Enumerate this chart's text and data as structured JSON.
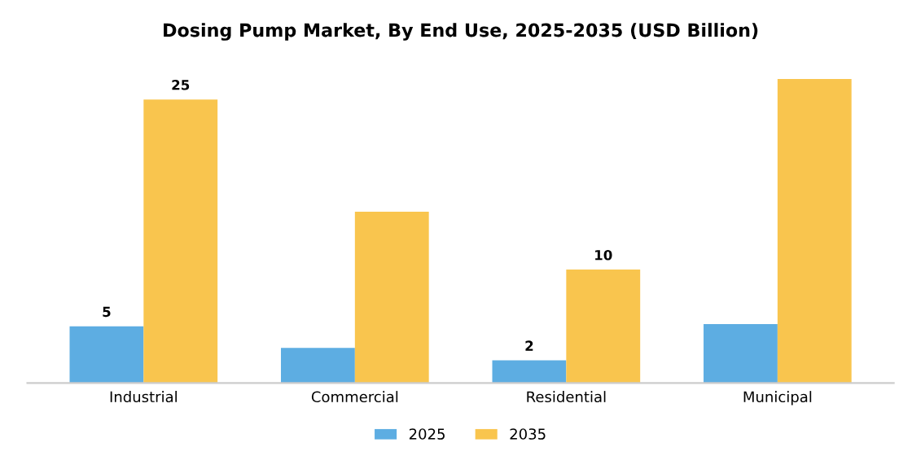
{
  "chart_data": {
    "type": "bar",
    "title": "Dosing Pump Market, By End Use, 2025-2035 (USD Billion)",
    "categories": [
      "Industrial",
      "Commercial",
      "Residential",
      "Municipal"
    ],
    "series": [
      {
        "name": "2025",
        "color": "#5dade2",
        "values": [
          5,
          3.1,
          2,
          5.2
        ],
        "value_labels": [
          "5",
          null,
          "2",
          null
        ]
      },
      {
        "name": "2035",
        "color": "#f9c54e",
        "values": [
          25,
          15.1,
          10,
          26.8
        ],
        "value_labels": [
          "25",
          null,
          "10",
          null
        ]
      }
    ],
    "legend": "bottom",
    "grid": false
  }
}
